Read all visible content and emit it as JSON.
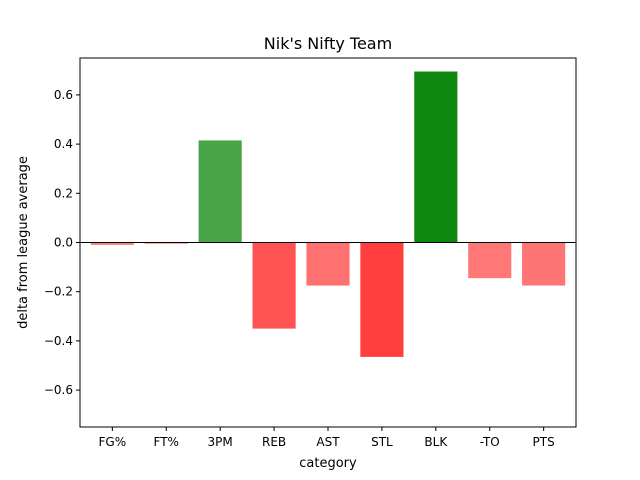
{
  "chart_data": {
    "type": "bar",
    "title": "Nik's Nifty Team",
    "xlabel": "category",
    "ylabel": "delta from league average",
    "categories": [
      "FG%",
      "FT%",
      "3PM",
      "REB",
      "AST",
      "STL",
      "BLK",
      "-TO",
      "PTS"
    ],
    "values": [
      -0.01,
      -0.005,
      0.415,
      -0.35,
      -0.175,
      -0.465,
      0.695,
      -0.145,
      -0.175
    ],
    "bar_colors": [
      "#ff7f7f",
      "#ff8080",
      "#47a547",
      "#ff5252",
      "#ff7070",
      "#ff3e3e",
      "#0e870e",
      "#ff7777",
      "#ff7575"
    ],
    "ylim": [
      -0.75,
      0.75
    ],
    "yticks": [
      -0.6,
      -0.4,
      -0.2,
      0.0,
      0.2,
      0.4,
      0.6
    ],
    "ytick_labels": [
      "−0.6",
      "−0.4",
      "−0.2",
      "0.0",
      "0.2",
      "0.4",
      "0.6"
    ],
    "zero_line": true,
    "grid": false,
    "legend": "none"
  }
}
